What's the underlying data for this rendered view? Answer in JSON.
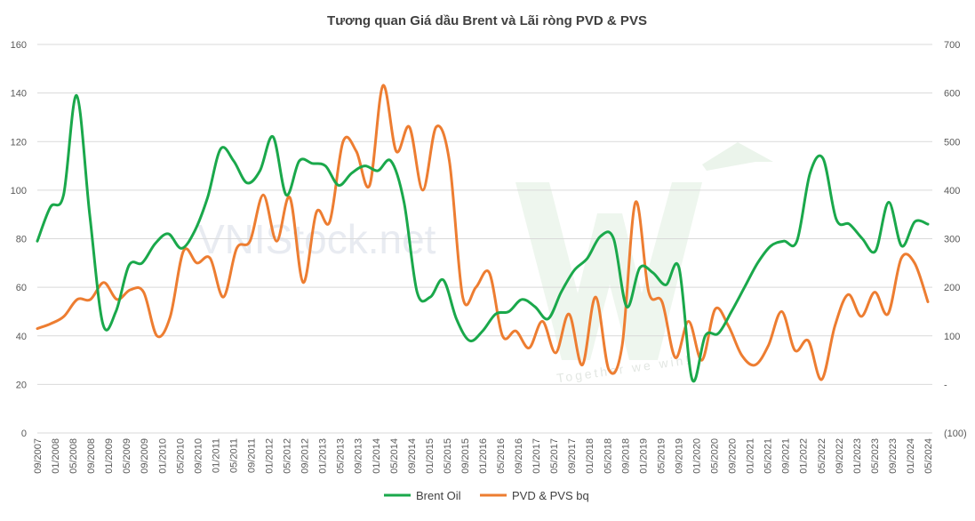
{
  "chart_data": {
    "type": "line",
    "title": "Tương quan Giá dầu Brent và Lãi ròng PVD & PVS",
    "watermark": "VNIStock.net",
    "watermark_tagline": "Together we win!",
    "x_labels": [
      "09/2007",
      "01/2008",
      "05/2008",
      "09/2008",
      "01/2009",
      "05/2009",
      "09/2009",
      "01/2010",
      "05/2010",
      "09/2010",
      "01/2011",
      "05/2011",
      "09/2011",
      "01/2012",
      "05/2012",
      "09/2012",
      "01/2013",
      "05/2013",
      "09/2013",
      "01/2014",
      "05/2014",
      "09/2014",
      "01/2015",
      "05/2015",
      "09/2015",
      "01/2016",
      "05/2016",
      "09/2016",
      "01/2017",
      "05/2017",
      "09/2017",
      "01/2018",
      "05/2018",
      "09/2018",
      "01/2019",
      "05/2019",
      "09/2019",
      "01/2020",
      "05/2020",
      "09/2020",
      "01/2021",
      "05/2021",
      "09/2021",
      "01/2022",
      "05/2022",
      "09/2022",
      "01/2023",
      "05/2023",
      "09/2023",
      "01/2024",
      "05/2024"
    ],
    "left_axis": {
      "ylim": [
        0,
        160
      ],
      "ticks": [
        "0",
        "20",
        "40",
        "60",
        "80",
        "100",
        "120",
        "140",
        "160"
      ]
    },
    "right_axis": {
      "ylim": [
        -100,
        700
      ],
      "ticks": [
        "(100)",
        "-",
        "100",
        "200",
        "300",
        "400",
        "500",
        "600",
        "700"
      ]
    },
    "series": [
      {
        "name": "Brent Oil",
        "axis": "left",
        "color": "#1aa84b",
        "values": [
          79,
          93,
          98,
          139,
          90,
          45,
          50,
          69,
          70,
          78,
          82,
          76,
          83,
          97,
          117,
          112,
          103,
          108,
          122,
          98,
          112,
          111,
          110,
          102,
          107,
          110,
          108,
          112,
          95,
          58,
          56,
          63,
          47,
          38,
          42,
          49,
          50,
          55,
          52,
          47,
          58,
          67,
          72,
          81,
          80,
          52,
          68,
          66,
          61,
          68,
          22,
          40,
          41,
          50,
          60,
          70,
          77,
          79,
          79,
          107,
          113,
          88,
          86,
          80,
          75,
          95,
          77,
          87,
          86
        ]
      },
      {
        "name": "PVD & PVS bq",
        "axis": "right",
        "color": "#ed7d31",
        "values": [
          115,
          125,
          140,
          175,
          175,
          210,
          175,
          195,
          190,
          100,
          140,
          275,
          250,
          260,
          180,
          280,
          295,
          390,
          295,
          385,
          210,
          355,
          335,
          500,
          480,
          410,
          615,
          480,
          530,
          400,
          530,
          460,
          180,
          200,
          230,
          100,
          110,
          75,
          130,
          65,
          145,
          40,
          180,
          30,
          80,
          375,
          190,
          170,
          55,
          130,
          50,
          155,
          120,
          60,
          40,
          80,
          150,
          70,
          90,
          10,
          120,
          185,
          140,
          190,
          145,
          260,
          250,
          170
        ]
      }
    ]
  }
}
